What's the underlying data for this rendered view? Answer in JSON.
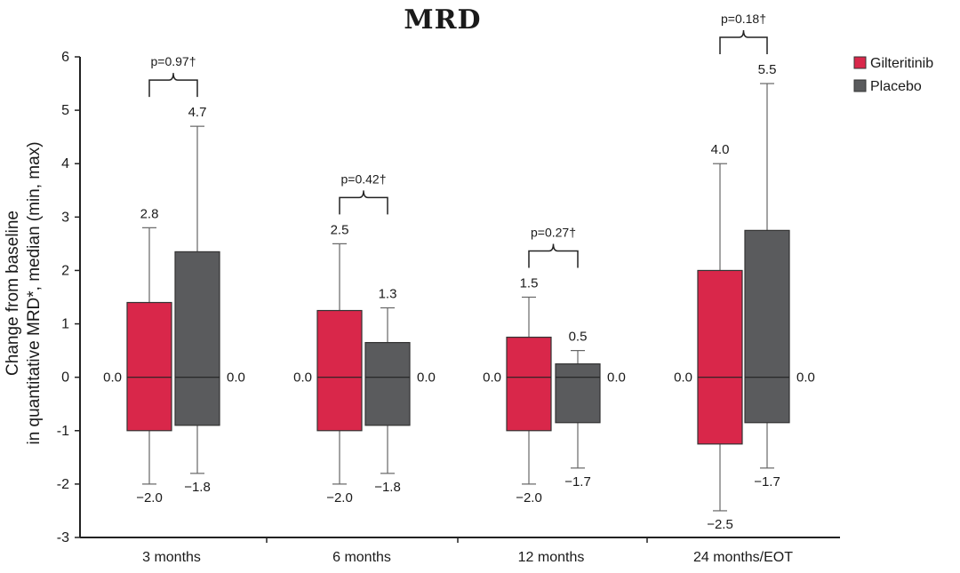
{
  "chart_data": {
    "type": "boxplot",
    "title": "MRD",
    "ylabel_line1": "Change from baseline",
    "ylabel_line2": "in quantitative MRD*, median (min, max)",
    "ylim": [
      -3,
      6
    ],
    "yticks": [
      "-3",
      "-2",
      "-1",
      "0",
      "1",
      "2",
      "3",
      "4",
      "5",
      "6"
    ],
    "categories": [
      "3 months",
      "6 months",
      "12 months",
      "24 months/EOT"
    ],
    "series": [
      {
        "name": "Gilteritinib",
        "color": "#d9274a",
        "boxes": [
          {
            "min": -2.0,
            "q1": -1.0,
            "median": 0.0,
            "q3": 1.4,
            "max": 2.8,
            "min_label": "−2.0",
            "median_label": "0.0",
            "max_label": "2.8"
          },
          {
            "min": -2.0,
            "q1": -1.0,
            "median": 0.0,
            "q3": 1.25,
            "max": 2.5,
            "min_label": "−2.0",
            "median_label": "0.0",
            "max_label": "2.5"
          },
          {
            "min": -2.0,
            "q1": -1.0,
            "median": 0.0,
            "q3": 0.75,
            "max": 1.5,
            "min_label": "−2.0",
            "median_label": "0.0",
            "max_label": "1.5"
          },
          {
            "min": -2.5,
            "q1": -1.25,
            "median": 0.0,
            "q3": 2.0,
            "max": 4.0,
            "min_label": "−2.5",
            "median_label": "0.0",
            "max_label": "4.0"
          }
        ]
      },
      {
        "name": "Placebo",
        "color": "#5a5b5d",
        "boxes": [
          {
            "min": -1.8,
            "q1": -0.9,
            "median": 0.0,
            "q3": 2.35,
            "max": 4.7,
            "min_label": "−1.8",
            "median_label": "0.0",
            "max_label": "4.7"
          },
          {
            "min": -1.8,
            "q1": -0.9,
            "median": 0.0,
            "q3": 0.65,
            "max": 1.3,
            "min_label": "−1.8",
            "median_label": "0.0",
            "max_label": "1.3"
          },
          {
            "min": -1.7,
            "q1": -0.85,
            "median": 0.0,
            "q3": 0.25,
            "max": 0.5,
            "min_label": "−1.7",
            "median_label": "0.0",
            "max_label": "0.5"
          },
          {
            "min": -1.7,
            "q1": -0.85,
            "median": 0.0,
            "q3": 2.75,
            "max": 5.5,
            "min_label": "−1.7",
            "median_label": "0.0",
            "max_label": "5.5"
          }
        ]
      }
    ],
    "p_values": [
      "p=0.97†",
      "p=0.42†",
      "p=0.27†",
      "p=0.18†"
    ],
    "legend": [
      "Gilteritinib",
      "Placebo"
    ],
    "legend_position": "top-right"
  }
}
